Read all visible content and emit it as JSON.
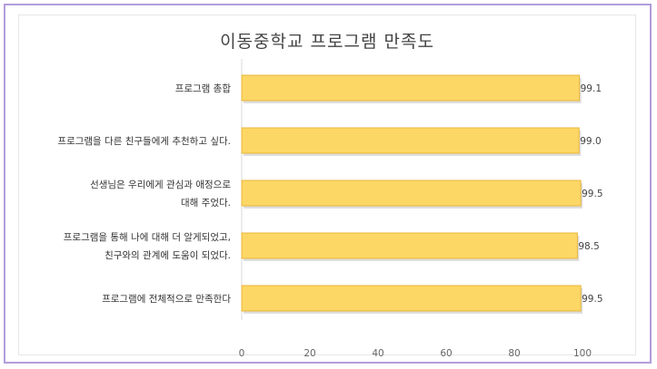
{
  "chart_data": {
    "type": "bar",
    "orientation": "horizontal",
    "title": "이동중학교 프로그램 만족도",
    "categories": [
      [
        "프로그램 총합"
      ],
      [
        "프로그램을 다른 친구들에게 추천하고 싶다."
      ],
      [
        "선생님은 우리에게 관심과 애정으로",
        "대해 주었다."
      ],
      [
        "프로그램을 통해 나에 대해 더 알게되었고,",
        "친구와의 관계에 도움이 되었다."
      ],
      [
        "프로그램에 전체적으로 만족한다"
      ]
    ],
    "values": [
      99.1,
      99.0,
      99.5,
      98.5,
      99.5
    ],
    "value_labels": [
      "99.1",
      "99.0",
      "99.5",
      "98.5",
      "99.5"
    ],
    "xlim": [
      0,
      100
    ],
    "xticks": [
      "0",
      "20",
      "40",
      "60",
      "80",
      "100"
    ],
    "bar_color": "#fdd766",
    "bar_border": "#e8b53a",
    "grid": false,
    "legend": "none"
  }
}
